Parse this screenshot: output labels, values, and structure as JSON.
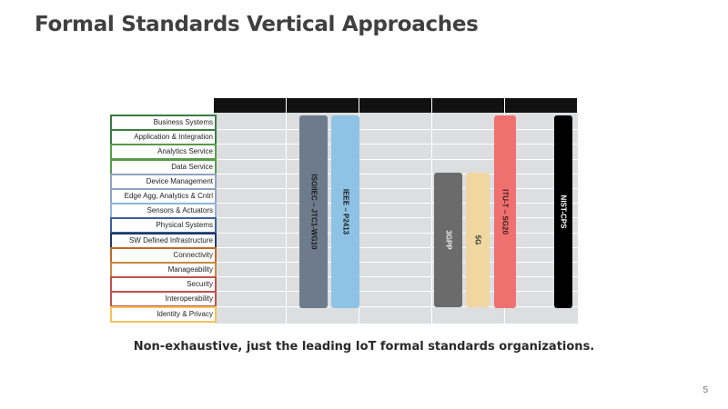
{
  "slide": {
    "title": "Formal Standards Vertical Approaches",
    "footnote": "Non-exhaustive, just the leading IoT formal standards organizations.",
    "page_number": "5"
  },
  "layers": [
    {
      "label": "Business Systems",
      "color": "#3a7d44"
    },
    {
      "label": "Application & Integration",
      "color": "#3a7d44"
    },
    {
      "label": "Analytics Service",
      "color": "#5a9a4a"
    },
    {
      "label": "Data Service",
      "color": "#5a9a4a"
    },
    {
      "label": "Device Management",
      "color": "#8ea3c4"
    },
    {
      "label": "Edge Agg, Analytics & Cntrl",
      "color": "#8ea3c4"
    },
    {
      "label": "Sensors & Actuators",
      "color": "#8fb5dc"
    },
    {
      "label": "Physical Systems",
      "color": "#3f5f9a"
    },
    {
      "label": "SW Defined Infrastructure",
      "color": "#1f3864"
    },
    {
      "label": "Connectivity",
      "color": "#c0692a"
    },
    {
      "label": "Manageability",
      "color": "#c98a3e"
    },
    {
      "label": "Security",
      "color": "#c0504d"
    },
    {
      "label": "Interoperability",
      "color": "#c0504d"
    },
    {
      "label": "Identity & Privacy",
      "color": "#f2c35a"
    }
  ],
  "bars": [
    {
      "label": "ISO/IEC – JTC1-WG10",
      "color": "#6d7b8d",
      "text_color": "#1a1a1a"
    },
    {
      "label": "IEEE – P2413",
      "color": "#8fc3e6",
      "text_color": "#1a1a1a"
    },
    {
      "label": "3GPP",
      "color": "#6b6b6b",
      "text_color": "#f0f0f0"
    },
    {
      "label": "5G",
      "color": "#f0d7a0",
      "text_color": "#333333"
    },
    {
      "label": "ITU-T – SG20",
      "color": "#f07070",
      "text_color": "#3a1a1a"
    },
    {
      "label": "NIST-CPS",
      "color": "#000000",
      "text_color": "#ffffff"
    }
  ]
}
